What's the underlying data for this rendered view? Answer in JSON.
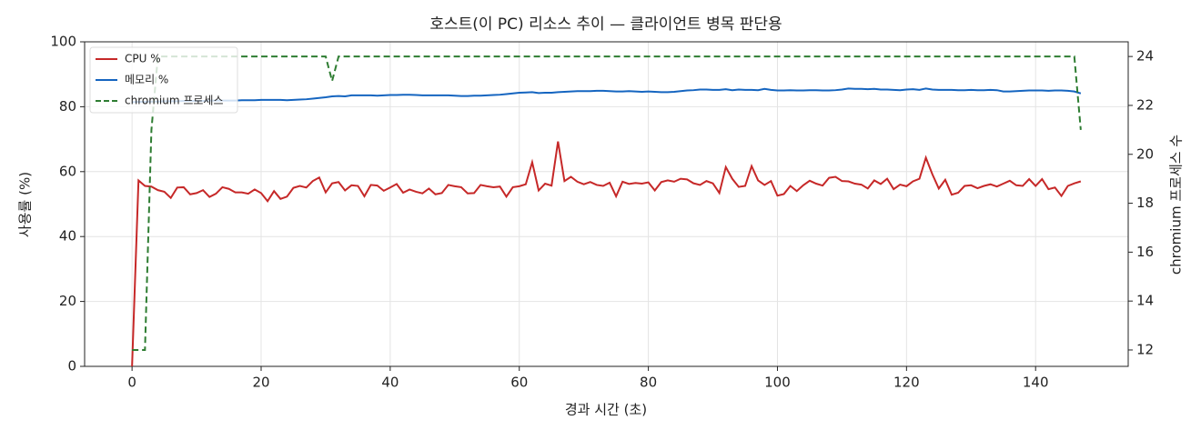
{
  "chart_data": {
    "type": "line",
    "title": "호스트(이 PC) 리소스 추이 — 클라이언트 병목 판단용",
    "xlabel": "경과 시간 (초)",
    "ylabel": "사용률 (%)",
    "y2label": "chromium 프로세스 수",
    "x": [
      0,
      1,
      2,
      3,
      4,
      5,
      6,
      7,
      8,
      9,
      10,
      11,
      12,
      13,
      14,
      15,
      16,
      17,
      18,
      19,
      20,
      21,
      22,
      23,
      24,
      25,
      26,
      27,
      28,
      29,
      30,
      31,
      32,
      33,
      34,
      35,
      36,
      37,
      38,
      39,
      40,
      41,
      42,
      43,
      44,
      45,
      46,
      47,
      48,
      49,
      50,
      51,
      52,
      53,
      54,
      55,
      56,
      57,
      58,
      59,
      60,
      61,
      62,
      63,
      64,
      65,
      66,
      67,
      68,
      69,
      70,
      71,
      72,
      73,
      74,
      75,
      76,
      77,
      78,
      79,
      80,
      81,
      82,
      83,
      84,
      85,
      86,
      87,
      88,
      89,
      90,
      91,
      92,
      93,
      94,
      95,
      96,
      97,
      98,
      99,
      100,
      101,
      102,
      103,
      104,
      105,
      106,
      107,
      108,
      109,
      110,
      111,
      112,
      113,
      114,
      115,
      116,
      117,
      118,
      119,
      120,
      121,
      122,
      123,
      124,
      125,
      126,
      127,
      128,
      129,
      130,
      131,
      132,
      133,
      134,
      135,
      136,
      137,
      138,
      139,
      140,
      141,
      142,
      143,
      144,
      145,
      146,
      147
    ],
    "series": [
      {
        "name": "CPU %",
        "color": "#c62828",
        "linestyle": "solid",
        "axis": "y",
        "values": [
          0,
          57.3,
          55.6,
          55.4,
          54.3,
          53.8,
          51.9,
          55.1,
          55.2,
          53.0,
          53.4,
          54.3,
          52.2,
          53.2,
          55.2,
          54.7,
          53.6,
          53.6,
          53.2,
          54.5,
          53.4,
          50.9,
          54.0,
          51.6,
          52.3,
          55.0,
          55.6,
          55.1,
          57.1,
          58.2,
          53.6,
          56.4,
          56.8,
          54.2,
          55.8,
          55.6,
          52.4,
          55.9,
          55.7,
          54.1,
          55.1,
          56.2,
          53.5,
          54.5,
          53.8,
          53.3,
          54.8,
          53.0,
          53.4,
          55.9,
          55.5,
          55.2,
          53.3,
          53.4,
          55.9,
          55.5,
          55.2,
          55.4,
          52.3,
          55.2,
          55.5,
          56.1,
          62.9,
          54.2,
          56.3,
          55.7,
          69.3,
          57.1,
          58.4,
          56.9,
          56.1,
          56.8,
          55.9,
          55.6,
          56.6,
          52.4,
          56.9,
          56.2,
          56.5,
          56.3,
          56.7,
          54.2,
          56.8,
          57.3,
          56.9,
          57.8,
          57.6,
          56.4,
          55.9,
          57.1,
          56.4,
          53.4,
          61.4,
          57.8,
          55.3,
          55.6,
          61.7,
          57.3,
          55.9,
          57.1,
          52.6,
          53.1,
          55.6,
          54.0,
          55.8,
          57.2,
          56.3,
          55.7,
          58.1,
          58.4,
          57.1,
          57.0,
          56.3,
          56.0,
          54.8,
          57.3,
          56.2,
          57.8,
          54.6,
          56.0,
          55.5,
          57.0,
          57.8,
          64.3,
          59.2,
          54.8,
          57.5,
          52.9,
          53.5,
          55.6,
          55.8,
          54.9,
          55.6,
          56.1,
          55.4,
          56.3,
          57.2,
          55.8,
          55.6,
          57.7,
          55.6,
          57.7,
          54.6,
          55.1,
          52.5,
          55.6,
          56.4,
          57.0
        ]
      },
      {
        "name": "메모리 %",
        "color": "#1565c0",
        "linestyle": "solid",
        "axis": "y",
        "values": [
          81.4,
          81.5,
          81.5,
          81.6,
          81.6,
          81.7,
          81.7,
          81.7,
          81.8,
          81.8,
          81.8,
          81.8,
          81.9,
          81.9,
          81.9,
          81.9,
          81.9,
          82.0,
          82.0,
          82.0,
          82.1,
          82.1,
          82.1,
          82.1,
          82.0,
          82.1,
          82.2,
          82.3,
          82.5,
          82.7,
          82.9,
          83.2,
          83.3,
          83.2,
          83.5,
          83.5,
          83.5,
          83.5,
          83.4,
          83.5,
          83.6,
          83.6,
          83.7,
          83.7,
          83.6,
          83.5,
          83.5,
          83.5,
          83.5,
          83.5,
          83.4,
          83.3,
          83.3,
          83.4,
          83.4,
          83.5,
          83.6,
          83.7,
          83.9,
          84.1,
          84.3,
          84.4,
          84.5,
          84.2,
          84.3,
          84.3,
          84.5,
          84.6,
          84.7,
          84.8,
          84.8,
          84.8,
          84.9,
          84.9,
          84.8,
          84.7,
          84.7,
          84.8,
          84.7,
          84.6,
          84.7,
          84.6,
          84.5,
          84.5,
          84.6,
          84.8,
          85.0,
          85.1,
          85.3,
          85.3,
          85.2,
          85.2,
          85.4,
          85.1,
          85.3,
          85.2,
          85.2,
          85.1,
          85.5,
          85.2,
          85.0,
          85.0,
          85.1,
          85.0,
          85.0,
          85.1,
          85.1,
          85.0,
          85.0,
          85.1,
          85.3,
          85.6,
          85.5,
          85.5,
          85.4,
          85.5,
          85.3,
          85.3,
          85.2,
          85.1,
          85.3,
          85.4,
          85.2,
          85.6,
          85.3,
          85.2,
          85.2,
          85.2,
          85.1,
          85.1,
          85.2,
          85.1,
          85.1,
          85.2,
          85.1,
          84.7,
          84.7,
          84.8,
          84.9,
          85.0,
          85.0,
          85.0,
          84.9,
          85.0,
          85.0,
          84.9,
          84.7,
          84.1
        ]
      },
      {
        "name": "chromium 프로세스",
        "color": "#2e7d32",
        "linestyle": "dashed",
        "axis": "y2",
        "values": [
          12,
          12,
          12,
          21,
          24,
          24,
          24,
          24,
          24,
          24,
          24,
          24,
          24,
          24,
          24,
          24,
          24,
          24,
          24,
          24,
          24,
          24,
          24,
          24,
          24,
          24,
          24,
          24,
          24,
          24,
          24,
          23,
          24,
          24,
          24,
          24,
          24,
          24,
          24,
          24,
          24,
          24,
          24,
          24,
          24,
          24,
          24,
          24,
          24,
          24,
          24,
          24,
          24,
          24,
          24,
          24,
          24,
          24,
          24,
          24,
          24,
          24,
          24,
          24,
          24,
          24,
          24,
          24,
          24,
          24,
          24,
          24,
          24,
          24,
          24,
          24,
          24,
          24,
          24,
          24,
          24,
          24,
          24,
          24,
          24,
          24,
          24,
          24,
          24,
          24,
          24,
          24,
          24,
          24,
          24,
          24,
          24,
          24,
          24,
          24,
          24,
          24,
          24,
          24,
          24,
          24,
          24,
          24,
          24,
          24,
          24,
          24,
          24,
          24,
          24,
          24,
          24,
          24,
          24,
          24,
          24,
          24,
          24,
          24,
          24,
          24,
          24,
          24,
          24,
          24,
          24,
          24,
          24,
          24,
          24,
          24,
          24,
          24,
          24,
          24,
          24,
          24,
          24,
          24,
          24,
          24,
          24,
          21
        ]
      }
    ],
    "xlim": [
      -7.35,
      154.35
    ],
    "xticks": [
      0,
      20,
      40,
      60,
      80,
      100,
      120,
      140
    ],
    "ylim": [
      0,
      100
    ],
    "yticks": [
      0,
      20,
      40,
      60,
      80,
      100
    ],
    "y2lim": [
      11.33,
      24.6
    ],
    "y2ticks": [
      12,
      14,
      16,
      18,
      20,
      22,
      24
    ],
    "grid": true,
    "legend": "upper-left"
  }
}
